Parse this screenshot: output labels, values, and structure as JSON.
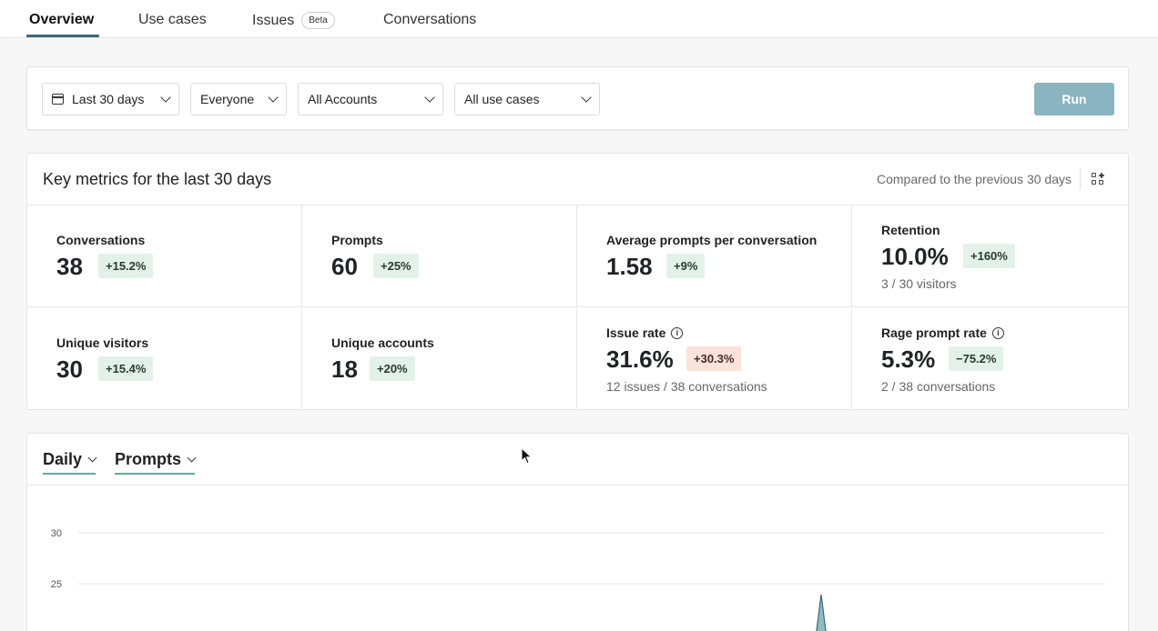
{
  "tabs": [
    {
      "label": "Overview",
      "active": true
    },
    {
      "label": "Use cases",
      "active": false
    },
    {
      "label": "Issues",
      "badge": "Beta",
      "active": false
    },
    {
      "label": "Conversations",
      "active": false
    }
  ],
  "filters": {
    "date_range": "Last 30 days",
    "audience": "Everyone",
    "accounts": "All Accounts",
    "use_cases": "All use cases",
    "run_label": "Run"
  },
  "metrics": {
    "title": "Key metrics for the last 30 days",
    "comparison": "Compared to the previous 30 days",
    "items": [
      {
        "label": "Conversations",
        "value": "38",
        "change": "+15.2%",
        "trend": "positive"
      },
      {
        "label": "Prompts",
        "value": "60",
        "change": "+25%",
        "trend": "positive"
      },
      {
        "label": "Average prompts per conversation",
        "value": "1.58",
        "change": "+9%",
        "trend": "positive"
      },
      {
        "label": "Retention",
        "value": "10.0%",
        "change": "+160%",
        "trend": "positive",
        "sub": "3 / 30 visitors"
      },
      {
        "label": "Unique visitors",
        "value": "30",
        "change": "+15.4%",
        "trend": "positive"
      },
      {
        "label": "Unique accounts",
        "value": "18",
        "change": "+20%",
        "trend": "positive"
      },
      {
        "label": "Issue rate",
        "value": "31.6%",
        "change": "+30.3%",
        "trend": "negative",
        "sub": "12 issues / 38 conversations",
        "info": true
      },
      {
        "label": "Rage prompt rate",
        "value": "5.3%",
        "change": "−75.2%",
        "trend": "positive",
        "sub": "2 / 38 conversations",
        "info": true
      }
    ]
  },
  "chart": {
    "interval": "Daily",
    "metric": "Prompts",
    "colors": {
      "area": "#8fbcc4",
      "line": "#3f6873",
      "grid": "#e6e6e6"
    }
  },
  "chart_data": {
    "type": "area",
    "y_ticks": [
      30,
      25
    ],
    "ylim": [
      0,
      30
    ]
  }
}
